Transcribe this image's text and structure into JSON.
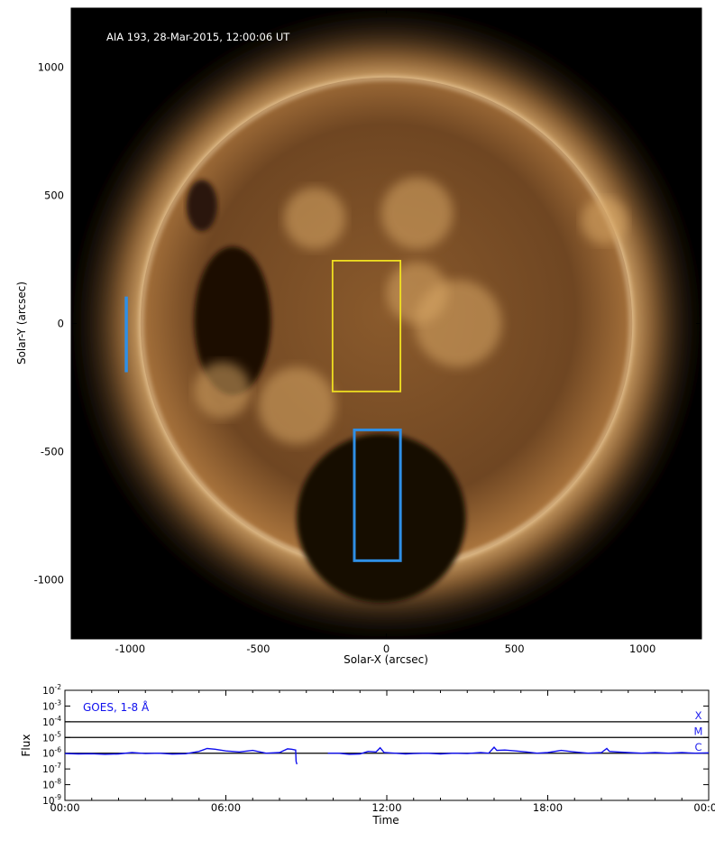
{
  "chart_data": [
    {
      "type": "image",
      "title": "AIA 193, 28-Mar-2015, 12:00:06 UT",
      "xlabel": "Solar-X (arcsec)",
      "ylabel": "Solar-Y (arcsec)",
      "xlim": [
        -1230,
        1230
      ],
      "ylim": [
        -1230,
        1230
      ],
      "xticks": [
        -1000,
        -500,
        0,
        500,
        1000
      ],
      "yticks": [
        -1000,
        -500,
        0,
        500,
        1000
      ],
      "xtick_labels": [
        "-1000",
        "-500",
        "0",
        "500",
        "1000"
      ],
      "ytick_labels": [
        "-1000",
        "-500",
        "0",
        "500",
        "1000"
      ],
      "solar_radius_arcsec": 960,
      "colors": {
        "box_yellow": "#f0e020",
        "box_blue": "#2f8fe6",
        "sun_base": "#6b4321",
        "label": "#ffffff"
      },
      "regions": [
        {
          "color": "yellow",
          "x": [
            -210,
            55
          ],
          "y": [
            -265,
            245
          ]
        },
        {
          "color": "blue",
          "x": [
            -125,
            55
          ],
          "y": [
            -925,
            -415
          ]
        }
      ],
      "lines": [
        {
          "color": "blue",
          "x": [
            -1015,
            -1015
          ],
          "y": [
            -190,
            105
          ]
        }
      ]
    },
    {
      "type": "line",
      "title": "GOES, 1-8 Å",
      "xlabel": "Time",
      "ylabel": "Flux",
      "xlim_hours": [
        0,
        24
      ],
      "xticks_hours": [
        0,
        6,
        12,
        18,
        24
      ],
      "xtick_labels": [
        "00:00",
        "06:00",
        "12:00",
        "18:00",
        "00:00"
      ],
      "yscale": "log",
      "ylim_exp": [
        -9,
        -2
      ],
      "ytick_exps": [
        -9,
        -8,
        -7,
        -6,
        -5,
        -4,
        -3,
        -2
      ],
      "ytick_base": "10",
      "flare_class_lines_exp": [
        -6,
        -5,
        -4
      ],
      "class_labels": [
        "X",
        "M",
        "C"
      ],
      "colors": {
        "series": "#1010ee",
        "annotation": "#2020ee"
      },
      "series": [
        {
          "hours": [
            0.0,
            0.5,
            1.0,
            1.5,
            2.0,
            2.5,
            3.0,
            3.5,
            4.0,
            4.5,
            5.0,
            5.3,
            5.6,
            6.0,
            6.5,
            7.0,
            7.5,
            8.0,
            8.3,
            8.45,
            8.6,
            8.62,
            8.65
          ],
          "flux": [
            9.5e-07,
            9e-07,
            9.2e-07,
            8.5e-07,
            9e-07,
            1.1e-06,
            9.5e-07,
            1e-06,
            8.8e-07,
            9.2e-07,
            1.3e-06,
            2e-06,
            1.8e-06,
            1.4e-06,
            1.2e-06,
            1.5e-06,
            1e-06,
            1.1e-06,
            1.9e-06,
            1.8e-06,
            1.6e-06,
            3e-07,
            2e-07
          ]
        },
        {
          "hours": [
            9.8,
            10.2,
            10.6,
            11.0,
            11.3,
            11.6,
            11.75,
            11.9,
            12.3,
            12.7,
            13.0,
            13.5,
            14.0,
            14.5,
            15.0,
            15.5,
            15.8,
            16.0,
            16.1,
            16.4,
            16.8,
            17.2,
            17.6,
            18.0,
            18.5,
            19.0,
            19.5,
            20.0,
            20.2,
            20.3,
            20.6,
            21.0,
            21.5,
            22.0,
            22.5,
            23.0,
            23.5,
            24.0
          ],
          "flux": [
            1e-06,
            1e-06,
            8.5e-07,
            9e-07,
            1.3e-06,
            1.2e-06,
            2.2e-06,
            1.1e-06,
            1e-06,
            9e-07,
            9.5e-07,
            1e-06,
            9e-07,
            1e-06,
            9.5e-07,
            1.1e-06,
            1e-06,
            2.4e-06,
            1.5e-06,
            1.6e-06,
            1.4e-06,
            1.2e-06,
            1e-06,
            1.1e-06,
            1.5e-06,
            1.2e-06,
            1e-06,
            1.1e-06,
            2e-06,
            1.3e-06,
            1.2e-06,
            1.1e-06,
            1e-06,
            1.1e-06,
            1e-06,
            1.1e-06,
            1e-06,
            1.05e-06
          ]
        }
      ]
    }
  ]
}
